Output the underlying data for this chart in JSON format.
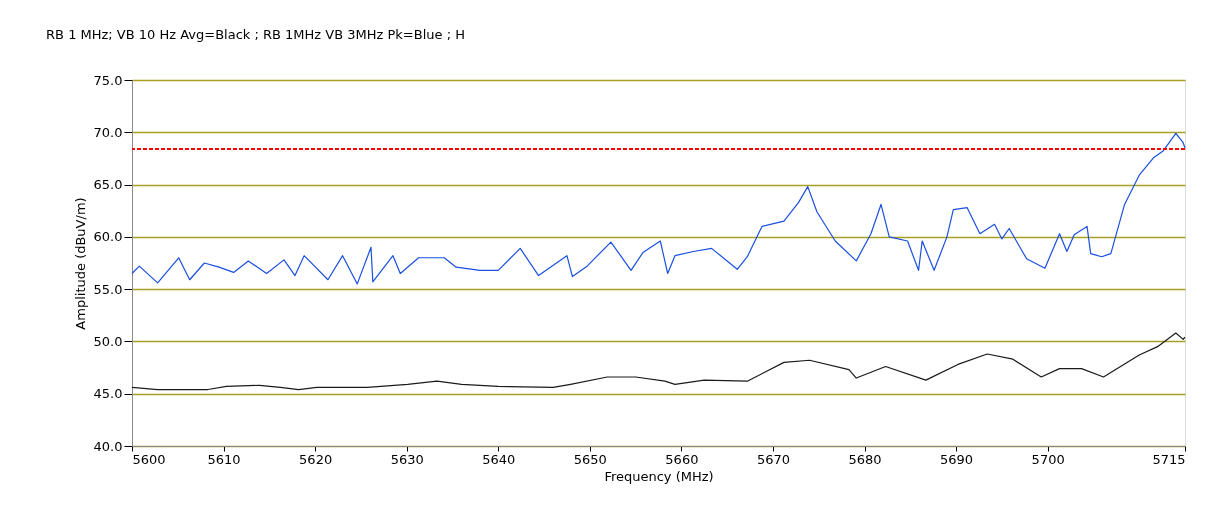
{
  "chart_data": {
    "type": "line",
    "title": "RB 1 MHz; VB 10 Hz Avg=Black ; RB 1MHz VB 3MHz Pk=Blue ; H",
    "xlabel": "Frequency (MHz)",
    "ylabel": "Amplitude (dBuV/m)",
    "xlim": [
      5600,
      5715
    ],
    "xticks": [
      5600,
      5610,
      5620,
      5630,
      5640,
      5650,
      5660,
      5670,
      5680,
      5690,
      5700,
      5715
    ],
    "ylim": [
      40,
      75
    ],
    "yticks": [
      {
        "value": 40,
        "label": "40.0"
      },
      {
        "value": 45,
        "label": "45.0"
      },
      {
        "value": 50,
        "label": "50.0"
      },
      {
        "value": 55,
        "label": "55.0"
      },
      {
        "value": 60,
        "label": "60.0"
      },
      {
        "value": 65,
        "label": "65.0"
      },
      {
        "value": 70,
        "label": "70.0"
      },
      {
        "value": 75,
        "label": "75.0"
      }
    ],
    "grid": "y",
    "legend": false,
    "line_style": "solid",
    "marker": "none",
    "ref_lines": [
      {
        "axis": "y",
        "value": 68.4,
        "color": "#ff0000",
        "line_style": "dashed"
      }
    ],
    "series": [
      {
        "color": "#1a4fe0",
        "x": [
          5600.0,
          5600.8,
          5602.8,
          5605.1,
          5606.3,
          5607.9,
          5609.5,
          5611.1,
          5612.7,
          5614.7,
          5616.6,
          5617.8,
          5618.8,
          5621.4,
          5623.0,
          5624.6,
          5626.1,
          5626.3,
          5628.5,
          5629.3,
          5631.3,
          5634.1,
          5635.4,
          5638.0,
          5640.0,
          5642.4,
          5644.4,
          5647.5,
          5648.1,
          5649.7,
          5652.3,
          5654.5,
          5655.8,
          5657.7,
          5658.5,
          5659.3,
          5661.3,
          5663.3,
          5666.1,
          5667.2,
          5668.8,
          5671.2,
          5672.8,
          5673.8,
          5674.8,
          5676.8,
          5679.1,
          5680.7,
          5681.8,
          5682.7,
          5684.7,
          5685.9,
          5686.3,
          5687.6,
          5689.0,
          5689.7,
          5691.2,
          5692.6,
          5694.2,
          5695.0,
          5695.8,
          5697.7,
          5699.7,
          5701.3,
          5702.1,
          5702.9,
          5704.3,
          5704.7,
          5705.9,
          5706.9,
          5708.4,
          5710.0,
          5711.6,
          5712.6,
          5714.0,
          5714.8,
          5715.0
        ],
        "values": [
          56.5,
          57.2,
          55.6,
          58.0,
          55.9,
          57.5,
          57.1,
          56.6,
          57.7,
          56.5,
          57.8,
          56.3,
          58.2,
          55.9,
          58.2,
          55.5,
          59.0,
          55.7,
          58.2,
          56.5,
          58.0,
          58.0,
          57.1,
          56.8,
          56.8,
          58.9,
          56.3,
          58.2,
          56.2,
          57.2,
          59.5,
          56.8,
          58.5,
          59.6,
          56.5,
          58.2,
          58.6,
          58.9,
          56.9,
          58.1,
          61.0,
          61.5,
          63.3,
          64.8,
          62.4,
          59.6,
          57.7,
          60.3,
          63.1,
          60.0,
          59.6,
          56.8,
          59.6,
          56.8,
          60.0,
          62.6,
          62.8,
          60.3,
          61.2,
          59.8,
          60.8,
          57.9,
          57.0,
          60.3,
          58.6,
          60.2,
          61.0,
          58.4,
          58.1,
          58.4,
          63.1,
          65.9,
          67.6,
          68.2,
          69.9,
          69.0,
          68.5
        ]
      },
      {
        "color": "#1a1a1a",
        "x": [
          5600.0,
          5602.8,
          5608.3,
          5610.3,
          5613.9,
          5616.2,
          5618.2,
          5620.2,
          5625.7,
          5630.1,
          5633.3,
          5636.0,
          5640.0,
          5646.0,
          5647.9,
          5651.9,
          5655.0,
          5658.2,
          5659.3,
          5662.5,
          5667.2,
          5671.2,
          5674.0,
          5678.3,
          5679.1,
          5682.3,
          5686.7,
          5690.2,
          5693.4,
          5696.2,
          5699.3,
          5701.3,
          5703.7,
          5706.1,
          5710.0,
          5712.0,
          5714.0,
          5714.8,
          5715.0
        ],
        "values": [
          45.6,
          45.4,
          45.4,
          45.7,
          45.8,
          45.6,
          45.4,
          45.6,
          45.6,
          45.9,
          46.2,
          45.9,
          45.7,
          45.6,
          45.9,
          46.6,
          46.6,
          46.2,
          45.9,
          46.3,
          46.2,
          48.0,
          48.2,
          47.3,
          46.5,
          47.6,
          46.3,
          47.8,
          48.8,
          48.3,
          46.6,
          47.4,
          47.4,
          46.6,
          48.7,
          49.5,
          50.8,
          50.2,
          50.4
        ]
      }
    ]
  }
}
